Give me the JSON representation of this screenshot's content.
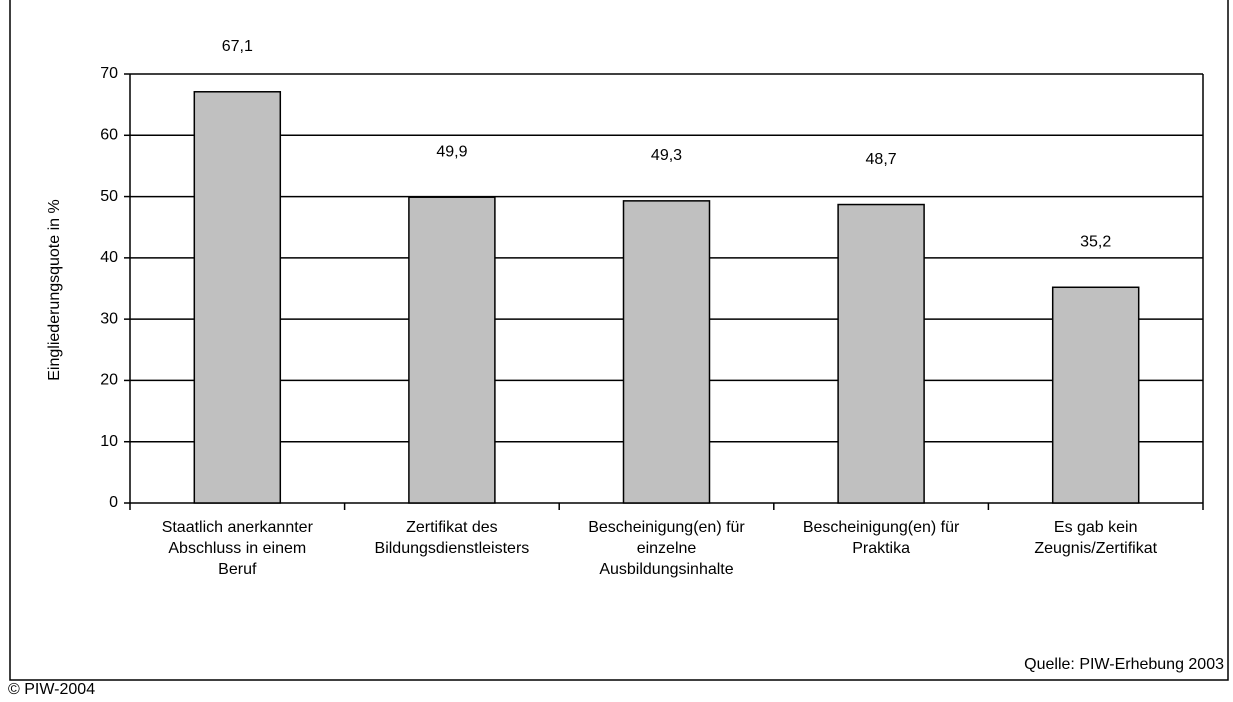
{
  "chart_data": {
    "type": "bar",
    "y_label": "Eingliederungsquote in %",
    "categories": [
      [
        "Staatlich anerkannter",
        "Abschluss in einem",
        "Beruf"
      ],
      [
        "Zertifikat des",
        "Bildungsdienstleisters"
      ],
      [
        "Bescheinigung(en) für",
        "einzelne",
        "Ausbildungsinhalte"
      ],
      [
        "Bescheinigung(en) für",
        "Praktika"
      ],
      [
        "Es gab kein",
        "Zeugnis/Zertifikat"
      ]
    ],
    "values": [
      67.1,
      49.9,
      49.3,
      48.7,
      35.2
    ],
    "value_labels": [
      "67,1",
      "49,9",
      "49,3",
      "48,7",
      "35,2"
    ],
    "color": "#c0c0c0",
    "ylim": [
      0,
      70
    ],
    "yticks": [
      0,
      10,
      20,
      30,
      40,
      50,
      60,
      70
    ],
    "grid": true,
    "source": "Quelle: PIW-Erhebung 2003",
    "copyright": "© PIW-2004"
  }
}
